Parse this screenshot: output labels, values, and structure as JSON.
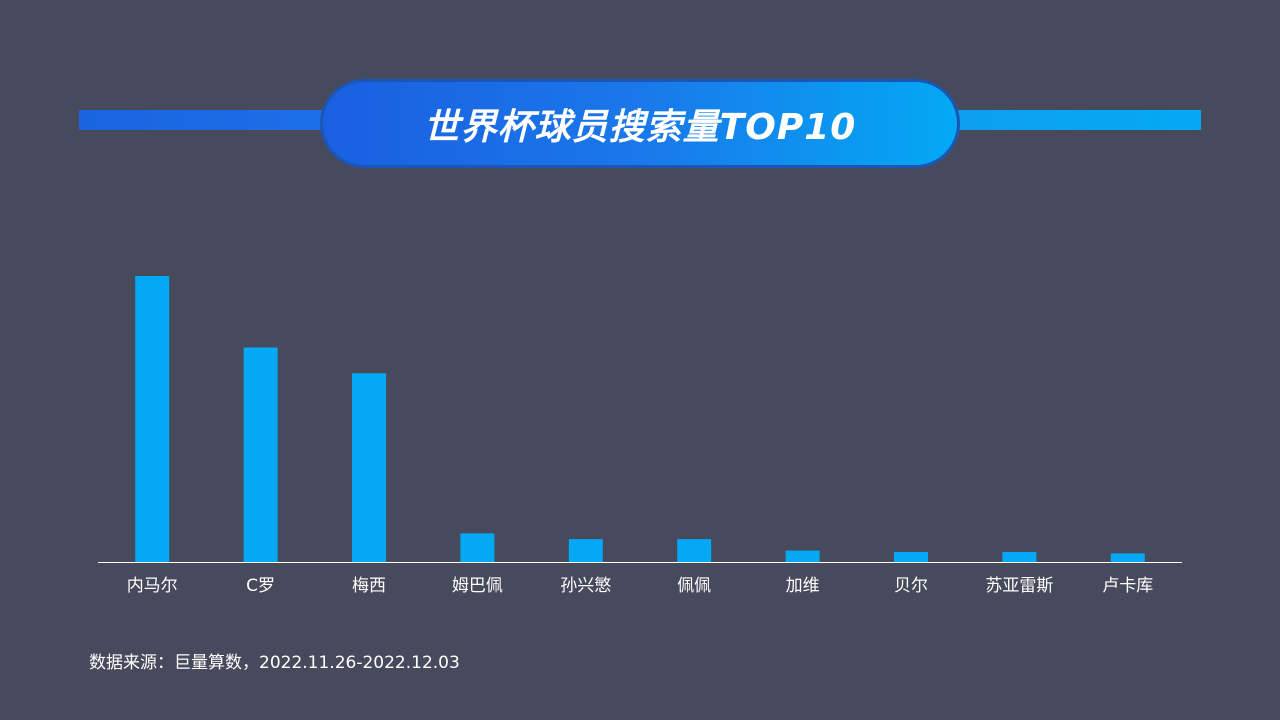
{
  "title": "世界杯球员搜索量TOP10",
  "source": "数据来源：巨量算数，2022.11.26-2022.12.03",
  "colors": {
    "background": "#474a5c",
    "bar": "#03a9f4",
    "axis": "#ffffff",
    "text": "#ffffff"
  },
  "chart_data": {
    "type": "bar",
    "title": "世界杯球员搜索量TOP10",
    "xlabel": "",
    "ylabel": "",
    "categories": [
      "内马尔",
      "C罗",
      "梅西",
      "姆巴佩",
      "孙兴慜",
      "佩佩",
      "加维",
      "贝尔",
      "苏亚雷斯",
      "卢卡库"
    ],
    "values": [
      100,
      75,
      66,
      10,
      8,
      8,
      4,
      3.5,
      3.5,
      3
    ],
    "ylim": [
      0,
      100
    ],
    "grid": false,
    "legend": "none"
  }
}
